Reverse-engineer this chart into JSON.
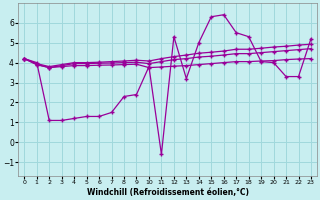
{
  "xlabel": "Windchill (Refroidissement éolien,°C)",
  "bg_color": "#c8eef0",
  "grid_color": "#a0d8dc",
  "line_color": "#990099",
  "xlim": [
    -0.5,
    23.5
  ],
  "ylim": [
    -1.7,
    7.0
  ],
  "yticks": [
    -1,
    0,
    1,
    2,
    3,
    4,
    5,
    6
  ],
  "xticks": [
    0,
    1,
    2,
    3,
    4,
    5,
    6,
    7,
    8,
    9,
    10,
    11,
    12,
    13,
    14,
    15,
    16,
    17,
    18,
    19,
    20,
    21,
    22,
    23
  ],
  "series1_y": [
    4.2,
    3.9,
    3.75,
    3.8,
    3.85,
    3.85,
    3.87,
    3.88,
    3.9,
    3.92,
    3.75,
    3.78,
    3.82,
    3.85,
    3.9,
    3.95,
    4.0,
    4.05,
    4.05,
    4.08,
    4.1,
    4.15,
    4.18,
    4.2
  ],
  "series2_y": [
    4.2,
    3.9,
    3.75,
    3.85,
    3.95,
    3.95,
    3.97,
    3.98,
    4.0,
    4.02,
    3.95,
    4.05,
    4.15,
    4.2,
    4.28,
    4.32,
    4.38,
    4.45,
    4.45,
    4.5,
    4.55,
    4.6,
    4.65,
    4.7
  ],
  "series3_y": [
    4.2,
    3.95,
    3.8,
    3.9,
    4.0,
    4.0,
    4.02,
    4.05,
    4.08,
    4.12,
    4.08,
    4.2,
    4.3,
    4.38,
    4.47,
    4.52,
    4.58,
    4.67,
    4.67,
    4.72,
    4.78,
    4.82,
    4.88,
    4.92
  ],
  "series4_y": [
    4.2,
    4.0,
    1.1,
    1.1,
    1.2,
    1.3,
    1.3,
    1.5,
    2.3,
    2.4,
    3.8,
    -0.6,
    5.3,
    3.2,
    5.0,
    6.3,
    6.4,
    5.5,
    5.3,
    4.05,
    4.0,
    3.3,
    3.3,
    5.2
  ]
}
